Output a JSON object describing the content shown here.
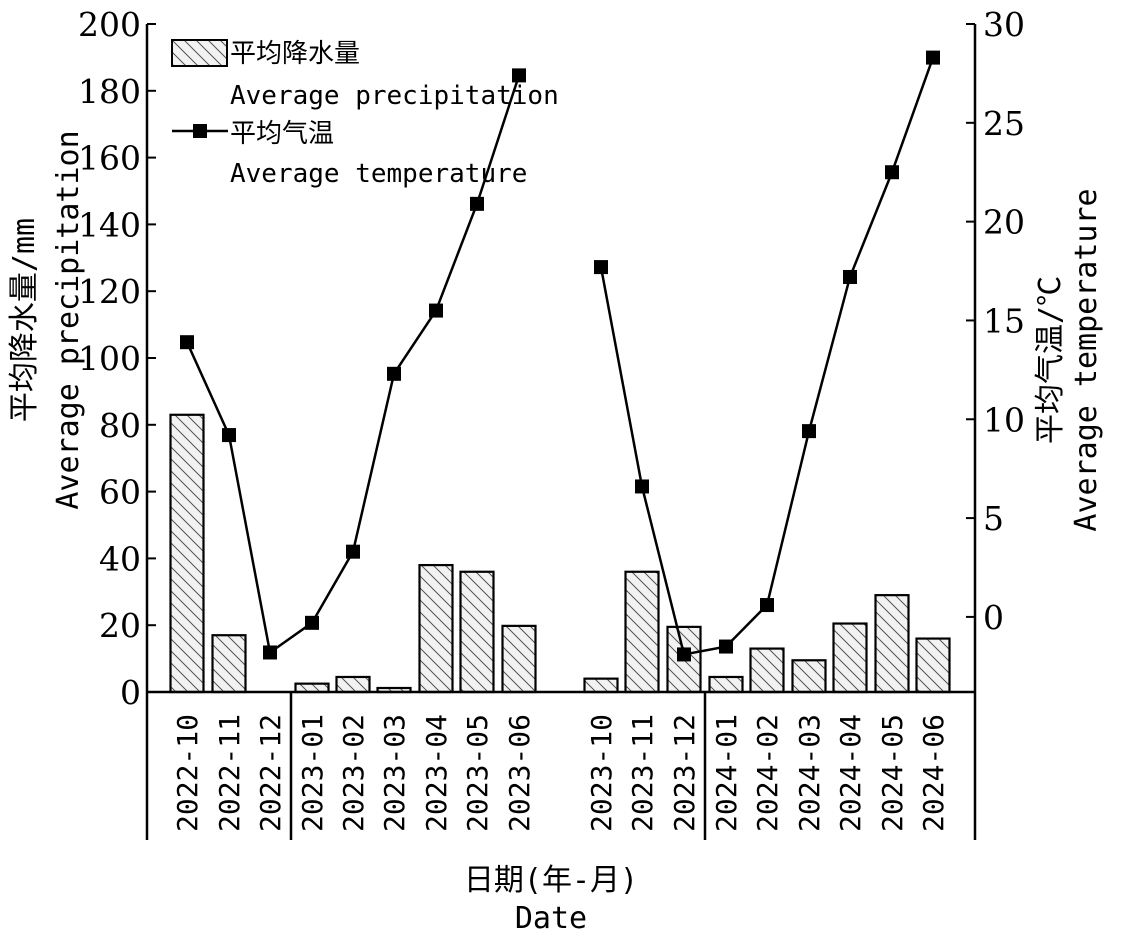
{
  "chart_data": {
    "type": "bar",
    "categories": [
      "2022-10",
      "2022-11",
      "2022-12",
      "2023-01",
      "2023-02",
      "2023-03",
      "2023-04",
      "2023-05",
      "2023-06",
      "2023-10",
      "2023-11",
      "2023-12",
      "2024-01",
      "2024-02",
      "2024-03",
      "2024-04",
      "2024-05",
      "2024-06"
    ],
    "series": [
      {
        "name": "平均降水量",
        "name_en": "Average precipitation",
        "type": "bar",
        "axis": "left",
        "values": [
          83,
          17,
          0,
          2.5,
          4.5,
          1.2,
          38,
          36,
          19.8,
          4,
          36,
          19.5,
          4.5,
          13,
          9.5,
          20.5,
          29,
          16
        ]
      },
      {
        "name": "平均气温",
        "name_en": "Average temperature",
        "type": "line",
        "axis": "right",
        "values": [
          13.9,
          9.2,
          -1.8,
          -0.3,
          3.3,
          12.3,
          15.5,
          20.9,
          27.4,
          17.7,
          6.6,
          -1.9,
          -1.5,
          0.6,
          9.4,
          17.2,
          22.5,
          28.3
        ]
      }
    ],
    "groups": [
      {
        "categories": [
          "2022-10",
          "2022-11",
          "2022-12",
          "2023-01",
          "2023-02",
          "2023-03",
          "2023-04",
          "2023-05",
          "2023-06"
        ]
      },
      {
        "categories": [
          "2023-10",
          "2023-11",
          "2023-12",
          "2024-01",
          "2024-02",
          "2024-03",
          "2024-04",
          "2024-05",
          "2024-06"
        ]
      }
    ],
    "ylim_left": [
      0,
      200
    ],
    "yticks_left": [
      0,
      20,
      40,
      60,
      80,
      100,
      120,
      140,
      160,
      180,
      200
    ],
    "ylim_right": [
      -3.8,
      30
    ],
    "yticks_right": [
      0,
      5,
      10,
      15,
      20,
      25,
      30
    ],
    "ylabel_left": [
      "平均降水量/mm",
      "Average precipitation"
    ],
    "ylabel_right": [
      "平均气温/℃",
      "Average temperature"
    ],
    "xlabel": [
      "日期(年-月)",
      "Date"
    ],
    "legend": {
      "placement": "top-left",
      "entries": [
        {
          "label": "平均降水量",
          "label_en": "Average precipitation",
          "marker": "hatched-bar"
        },
        {
          "label": "平均气温",
          "label_en": "Average temperature",
          "marker": "square-line"
        }
      ]
    },
    "grid": false,
    "colors": {
      "bar_fill": "#f2f2f2",
      "bar_stroke": "#000000",
      "hatch": "#555555",
      "line": "#000000",
      "marker": "#000000"
    }
  }
}
